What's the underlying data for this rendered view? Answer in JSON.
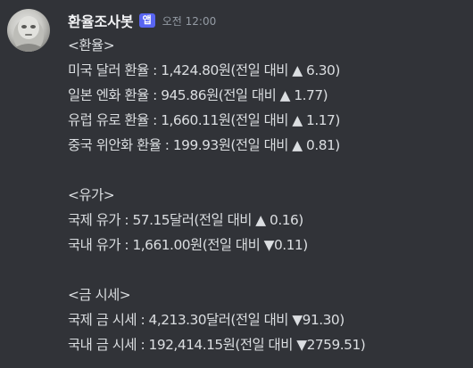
{
  "message": {
    "author": "환율조사봇",
    "badge": "앱",
    "timestamp": "오전 12:00",
    "avatar_icon": "robot-avatar-icon",
    "badge_color": "#5865f2",
    "sections": [
      {
        "heading": "<환율>",
        "lines": [
          "미국 달러 환율 : 1,424.80원(전일 대비 ▲ 6.30)",
          "일본 엔화 환율 : 945.86원(전일 대비 ▲ 1.77)",
          "유럽 유로 환율 : 1,660.11원(전일 대비 ▲ 1.17)",
          "중국 위안화 환율 : 199.93원(전일 대비 ▲ 0.81)"
        ]
      },
      {
        "heading": "<유가>",
        "lines": [
          "국제 유가 : 57.15달러(전일 대비 ▲ 0.16)",
          "국내 유가 : 1,661.00원(전일 대비 ▼0.11)"
        ]
      },
      {
        "heading": "<금 시세>",
        "lines": [
          "국제 금 시세 : 4,213.30달러(전일 대비 ▼91.30)",
          "국내 금 시세 : 192,414.15원(전일 대비 ▼2759.51)"
        ]
      }
    ]
  }
}
